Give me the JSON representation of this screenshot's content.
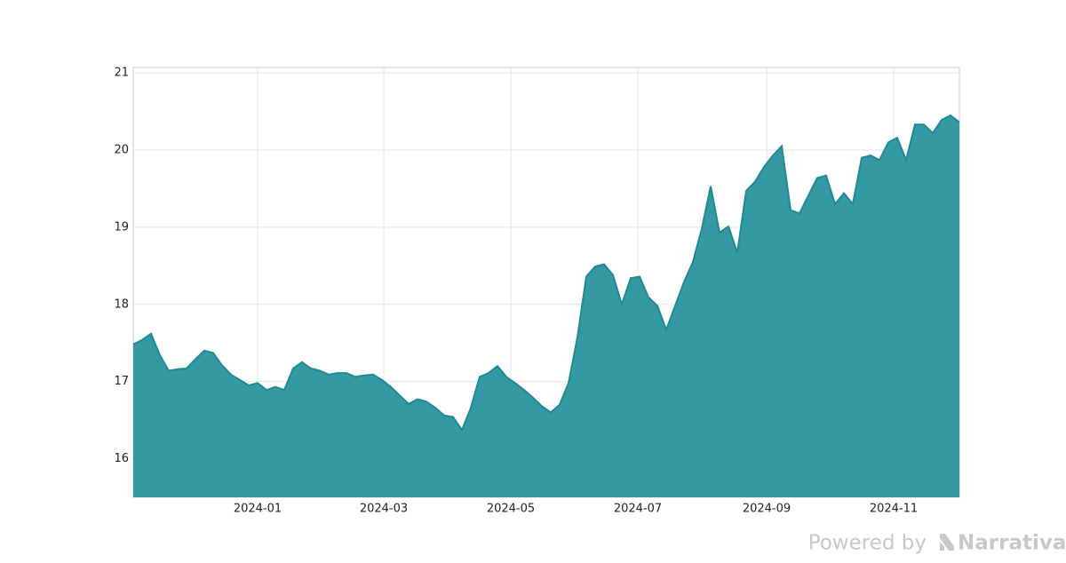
{
  "chart_data": {
    "type": "area",
    "color": "#2a939f",
    "line_color": "#1d8a95",
    "grid": true,
    "values": [
      17.48,
      17.54,
      17.62,
      17.34,
      17.14,
      17.16,
      17.17,
      17.29,
      17.4,
      17.37,
      17.21,
      17.09,
      17.02,
      16.95,
      16.98,
      16.89,
      16.93,
      16.89,
      17.17,
      17.25,
      17.17,
      17.14,
      17.09,
      17.11,
      17.11,
      17.06,
      17.08,
      17.09,
      17.02,
      16.93,
      16.82,
      16.71,
      16.77,
      16.74,
      16.66,
      16.56,
      16.54,
      16.37,
      16.66,
      17.06,
      17.11,
      17.2,
      17.06,
      16.98,
      16.89,
      16.79,
      16.68,
      16.6,
      16.7,
      16.98,
      17.57,
      18.36,
      18.49,
      18.52,
      18.38,
      18.0,
      18.34,
      18.36,
      18.09,
      17.98,
      17.67,
      17.98,
      18.29,
      18.55,
      18.98,
      19.53,
      18.93,
      19.01,
      18.67,
      19.47,
      19.59,
      19.78,
      19.93,
      20.05,
      19.22,
      19.18,
      19.41,
      19.64,
      19.67,
      19.3,
      19.44,
      19.3,
      19.9,
      19.93,
      19.87,
      20.1,
      20.16,
      19.87,
      20.33,
      20.33,
      20.22,
      20.39,
      20.45,
      20.36
    ],
    "xlim": [
      0,
      93
    ],
    "xticks": [
      {
        "value": 14,
        "label": "2024-01"
      },
      {
        "value": 28.2,
        "label": "2024-03"
      },
      {
        "value": 42.5,
        "label": "2024-05"
      },
      {
        "value": 56.8,
        "label": "2024-07"
      },
      {
        "value": 71.3,
        "label": "2024-09"
      },
      {
        "value": 85.6,
        "label": "2024-11"
      }
    ],
    "ylim": [
      15.5,
      21.07
    ],
    "yticks": [
      16,
      17,
      18,
      19,
      20,
      21
    ]
  },
  "footer": {
    "prefix": "Powered by",
    "brand": "Narrativa"
  }
}
